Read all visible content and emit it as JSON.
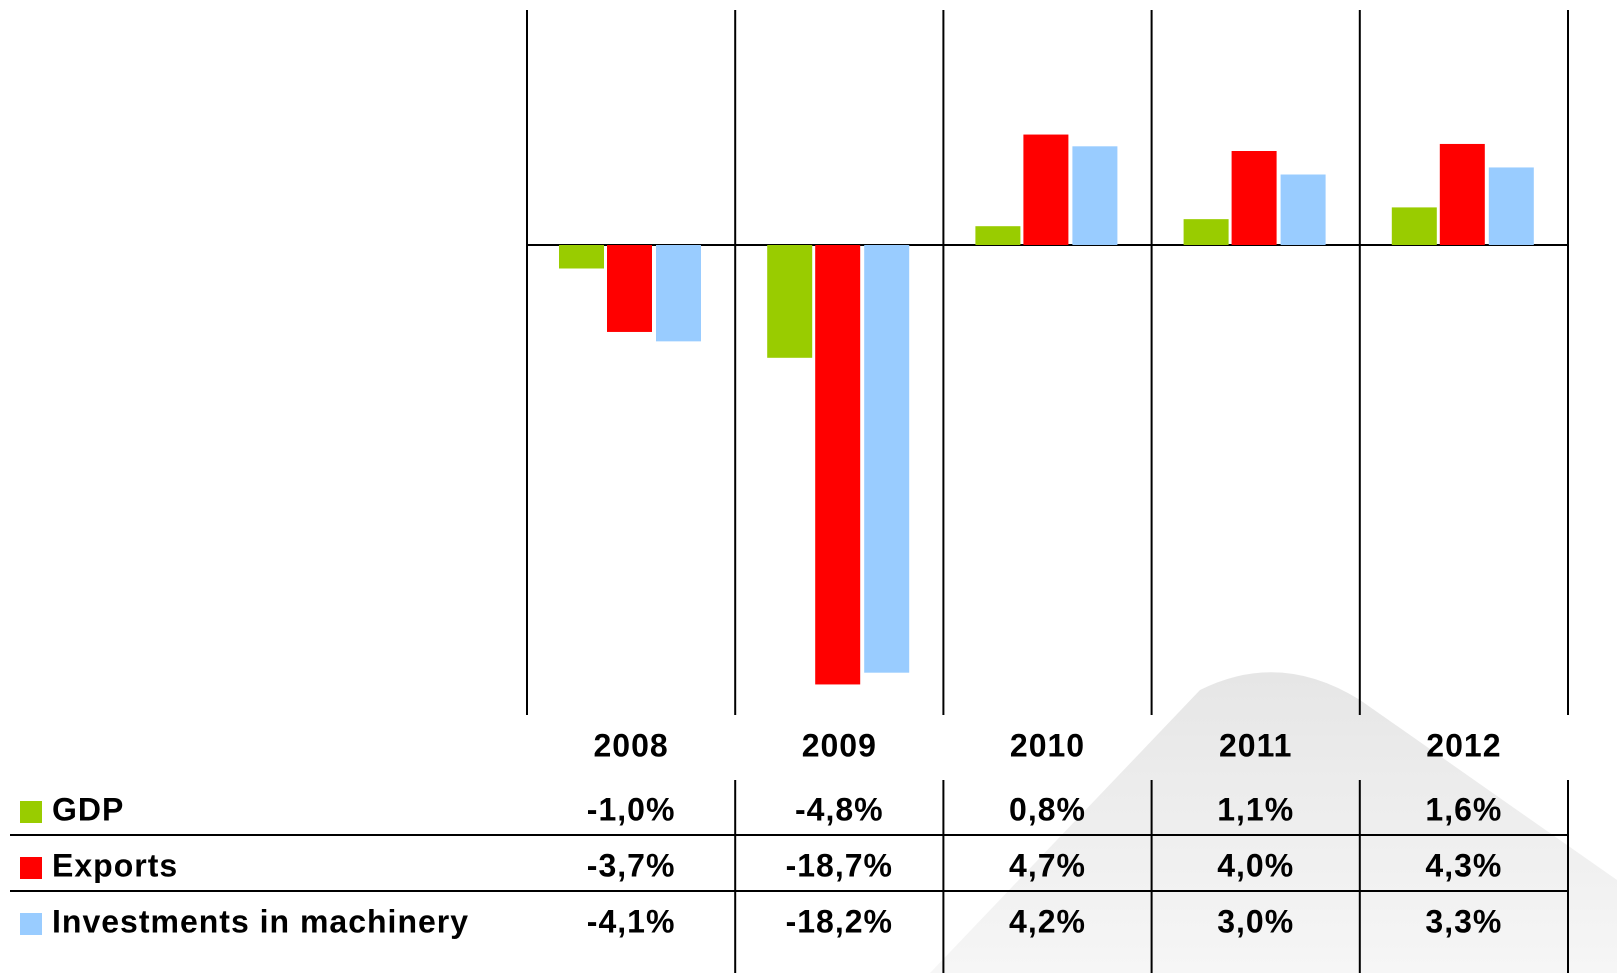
{
  "chart_data": {
    "type": "bar",
    "categories": [
      "2008",
      "2009",
      "2010",
      "2011",
      "2012"
    ],
    "series": [
      {
        "name": "GDP",
        "color": "#99cc00",
        "values": [
          -1.0,
          -4.8,
          0.8,
          1.1,
          1.6
        ],
        "value_labels": [
          "-1,0%",
          "-4,8%",
          "0,8%",
          "1,1%",
          "1,6%"
        ]
      },
      {
        "name": "Exports",
        "color": "#ff0000",
        "values": [
          -3.7,
          -18.7,
          4.7,
          4.0,
          4.3
        ],
        "value_labels": [
          "-3,7%",
          "-18,7%",
          "4,7%",
          "4,0%",
          "4,3%"
        ]
      },
      {
        "name": "Investments in machinery",
        "color": "#99ccff",
        "values": [
          -4.1,
          -18.2,
          4.2,
          3.0,
          3.3
        ],
        "value_labels": [
          "-4,1%",
          "-18,2%",
          "4,2%",
          "3,0%",
          "3,3%"
        ]
      }
    ],
    "ylim": [
      -20,
      10
    ]
  }
}
